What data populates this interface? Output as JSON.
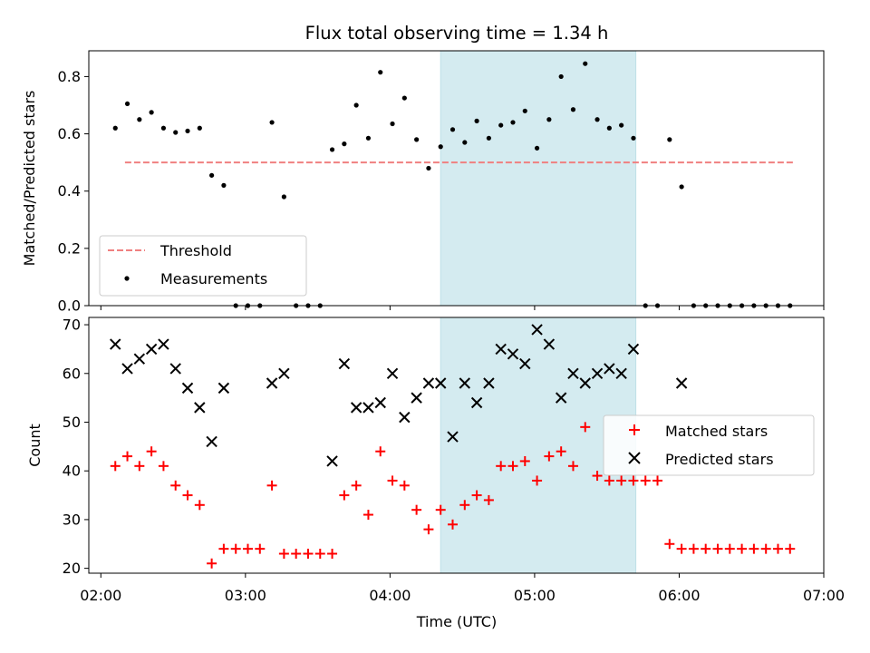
{
  "title": "Flux total observing time = 1.34 h",
  "chart_data": [
    {
      "type": "scatter",
      "panel": "top",
      "ylabel": "Matched/Predicted stars",
      "ylim": [
        0,
        0.89
      ],
      "yticks": [
        0.0,
        0.2,
        0.4,
        0.6,
        0.8
      ],
      "ytick_labels": [
        "0.0",
        "0.2",
        "0.4",
        "0.6",
        "0.8"
      ],
      "shaded_region": {
        "x0": "04:21",
        "x1": "05:42",
        "color": "#d4ebf0"
      },
      "threshold": {
        "name": "Threshold",
        "value": 0.5,
        "x0": "02:10",
        "x1": "06:48",
        "color": "#f08080"
      },
      "series": [
        {
          "name": "Measurements",
          "color": "#000000",
          "x": [
            "02:06",
            "02:11",
            "02:16",
            "02:21",
            "02:26",
            "02:31",
            "02:36",
            "02:41",
            "02:46",
            "02:51",
            "02:56",
            "03:01",
            "03:06",
            "03:11",
            "03:16",
            "03:21",
            "03:26",
            "03:31",
            "03:36",
            "03:41",
            "03:46",
            "03:51",
            "03:56",
            "04:01",
            "04:06",
            "04:11",
            "04:16",
            "04:21",
            "04:26",
            "04:31",
            "04:36",
            "04:41",
            "04:46",
            "04:51",
            "04:56",
            "05:01",
            "05:06",
            "05:11",
            "05:16",
            "05:21",
            "05:26",
            "05:31",
            "05:36",
            "05:41",
            "05:46",
            "05:51",
            "05:56",
            "06:01",
            "06:06",
            "06:11",
            "06:16",
            "06:21",
            "06:26",
            "06:31",
            "06:36",
            "06:41",
            "06:46"
          ],
          "y": [
            0.62,
            0.705,
            0.65,
            0.675,
            0.62,
            0.605,
            0.61,
            0.62,
            0.455,
            0.42,
            0,
            0,
            0,
            0.64,
            0.38,
            0,
            0,
            0,
            0.545,
            0.565,
            0.7,
            0.585,
            0.815,
            0.635,
            0.725,
            0.58,
            0.48,
            0.555,
            0.615,
            0.57,
            0.645,
            0.585,
            0.63,
            0.64,
            0.68,
            0.55,
            0.65,
            0.8,
            0.685,
            0.845,
            0.65,
            0.62,
            0.63,
            0.585,
            0,
            0,
            0.58,
            0.415,
            0,
            0,
            0,
            0,
            0,
            0,
            0,
            0,
            0
          ]
        }
      ],
      "legend": {
        "position": "lower-left",
        "entries": [
          "Threshold",
          "Measurements"
        ]
      }
    },
    {
      "type": "scatter",
      "panel": "bottom",
      "xlabel": "Time (UTC)",
      "ylabel": "Count",
      "xlim": [
        "01:55",
        "07:00"
      ],
      "xticks": [
        "02:00",
        "03:00",
        "04:00",
        "05:00",
        "06:00",
        "07:00"
      ],
      "ylim": [
        19,
        71.5
      ],
      "yticks": [
        20,
        30,
        40,
        50,
        60,
        70
      ],
      "shaded_region": {
        "x0": "04:21",
        "x1": "05:42",
        "color": "#d4ebf0"
      },
      "series": [
        {
          "name": "Matched stars",
          "marker": "+",
          "color": "#ff0000",
          "x": [
            "02:06",
            "02:11",
            "02:16",
            "02:21",
            "02:26",
            "02:31",
            "02:36",
            "02:41",
            "02:46",
            "02:51",
            "02:56",
            "03:01",
            "03:06",
            "03:11",
            "03:16",
            "03:21",
            "03:26",
            "03:31",
            "03:36",
            "03:41",
            "03:46",
            "03:51",
            "03:56",
            "04:01",
            "04:06",
            "04:11",
            "04:16",
            "04:21",
            "04:26",
            "04:31",
            "04:36",
            "04:41",
            "04:46",
            "04:51",
            "04:56",
            "05:01",
            "05:06",
            "05:11",
            "05:16",
            "05:21",
            "05:26",
            "05:31",
            "05:36",
            "05:41",
            "05:46",
            "05:51",
            "05:56",
            "06:01",
            "06:06",
            "06:11",
            "06:16",
            "06:21",
            "06:26",
            "06:31",
            "06:36",
            "06:41",
            "06:46"
          ],
          "y": [
            41,
            43,
            41,
            44,
            41,
            37,
            35,
            33,
            21,
            24,
            24,
            24,
            24,
            37,
            23,
            23,
            23,
            23,
            23,
            35,
            37,
            31,
            44,
            38,
            37,
            32,
            28,
            32,
            29,
            33,
            35,
            34,
            41,
            41,
            42,
            38,
            43,
            44,
            41,
            49,
            39,
            38,
            38,
            38,
            38,
            38,
            25,
            24,
            24,
            24,
            24,
            24,
            24,
            24,
            24,
            24,
            24
          ]
        },
        {
          "name": "Predicted stars",
          "marker": "x",
          "color": "#000000",
          "x": [
            "02:06",
            "02:11",
            "02:16",
            "02:21",
            "02:26",
            "02:31",
            "02:36",
            "02:41",
            "02:46",
            "02:51",
            "03:11",
            "03:16",
            "03:36",
            "03:41",
            "03:46",
            "03:51",
            "03:56",
            "04:01",
            "04:06",
            "04:11",
            "04:16",
            "04:21",
            "04:26",
            "04:31",
            "04:36",
            "04:41",
            "04:46",
            "04:51",
            "04:56",
            "05:01",
            "05:06",
            "05:11",
            "05:16",
            "05:21",
            "05:26",
            "05:31",
            "05:36",
            "05:41",
            "05:56",
            "06:01"
          ],
          "y": [
            66,
            61,
            63,
            65,
            66,
            61,
            57,
            53,
            46,
            57,
            58,
            60,
            42,
            62,
            53,
            53,
            54,
            60,
            51,
            55,
            58,
            58,
            47,
            58,
            54,
            58,
            65,
            64,
            62,
            69,
            66,
            55,
            60,
            58,
            60,
            61,
            60,
            65,
            null,
            58
          ]
        }
      ],
      "legend": {
        "position": "center-right",
        "entries": [
          "Matched stars",
          "Predicted stars"
        ]
      }
    }
  ]
}
